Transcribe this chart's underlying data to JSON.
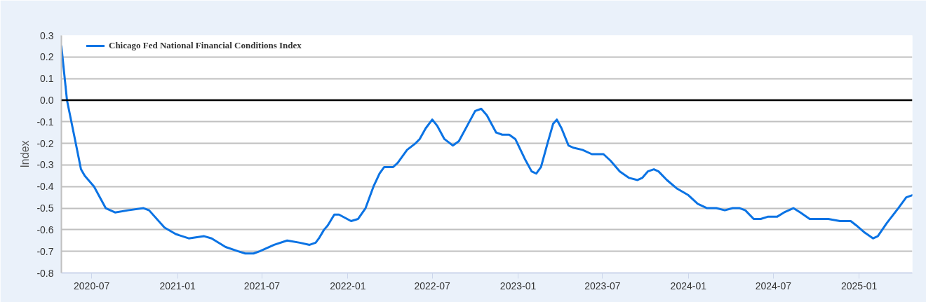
{
  "chart_data": {
    "type": "line",
    "ylabel": "Index",
    "x": [
      "2020-04-27",
      "2020-05-09",
      "2020-05-26",
      "2020-06-08",
      "2020-06-16",
      "2020-07-06",
      "2020-07-31",
      "2020-08-20",
      "2020-09-17",
      "2020-10-20",
      "2020-11-01",
      "2020-12-04",
      "2020-12-28",
      "2021-01-25",
      "2021-02-27",
      "2021-03-15",
      "2021-04-14",
      "2021-05-11",
      "2021-05-26",
      "2021-06-13",
      "2021-06-26",
      "2021-07-27",
      "2021-08-24",
      "2021-09-20",
      "2021-10-11",
      "2021-10-24",
      "2021-10-31",
      "2021-11-11",
      "2021-11-19",
      "2021-12-03",
      "2021-12-13",
      "2022-01-08",
      "2022-01-23",
      "2022-02-08",
      "2022-02-25",
      "2022-03-10",
      "2022-03-20",
      "2022-04-08",
      "2022-04-18",
      "2022-05-08",
      "2022-05-26",
      "2022-06-04",
      "2022-06-17",
      "2022-07-01",
      "2022-07-12",
      "2022-07-27",
      "2022-08-14",
      "2022-08-27",
      "2022-09-16",
      "2022-10-01",
      "2022-10-14",
      "2022-10-26",
      "2022-11-15",
      "2022-11-28",
      "2022-12-13",
      "2022-12-26",
      "2023-01-15",
      "2023-01-30",
      "2023-02-09",
      "2023-02-19",
      "2023-03-05",
      "2023-03-17",
      "2023-03-25",
      "2023-04-04",
      "2023-04-19",
      "2023-04-29",
      "2023-05-19",
      "2023-06-08",
      "2023-07-03",
      "2023-07-18",
      "2023-08-07",
      "2023-08-27",
      "2023-09-14",
      "2023-09-24",
      "2023-10-06",
      "2023-10-19",
      "2023-10-29",
      "2023-11-16",
      "2023-12-08",
      "2024-01-01",
      "2024-01-21",
      "2024-02-10",
      "2024-03-01",
      "2024-03-19",
      "2024-04-05",
      "2024-04-20",
      "2024-05-02",
      "2024-05-20",
      "2024-06-04",
      "2024-06-19",
      "2024-07-09",
      "2024-07-24",
      "2024-08-13",
      "2024-08-28",
      "2024-09-17",
      "2024-10-02",
      "2024-10-27",
      "2024-11-21",
      "2024-12-14",
      "2024-12-26",
      "2025-01-11",
      "2025-01-31",
      "2025-02-10",
      "2025-03-01",
      "2025-03-26",
      "2025-04-12",
      "2025-04-25"
    ],
    "series": [
      {
        "name": "Chicago Fed National Financial Conditions Index",
        "color": "#0b73e4",
        "values": [
          0.25,
          0.0,
          -0.18,
          -0.32,
          -0.35,
          -0.4,
          -0.5,
          -0.52,
          -0.51,
          -0.5,
          -0.51,
          -0.59,
          -0.62,
          -0.64,
          -0.63,
          -0.64,
          -0.68,
          -0.7,
          -0.71,
          -0.71,
          -0.7,
          -0.67,
          -0.65,
          -0.66,
          -0.67,
          -0.66,
          -0.64,
          -0.6,
          -0.58,
          -0.53,
          -0.53,
          -0.56,
          -0.55,
          -0.5,
          -0.4,
          -0.34,
          -0.31,
          -0.31,
          -0.29,
          -0.23,
          -0.2,
          -0.18,
          -0.13,
          -0.09,
          -0.12,
          -0.18,
          -0.21,
          -0.19,
          -0.11,
          -0.05,
          -0.04,
          -0.07,
          -0.15,
          -0.16,
          -0.16,
          -0.18,
          -0.27,
          -0.33,
          -0.34,
          -0.31,
          -0.2,
          -0.11,
          -0.09,
          -0.13,
          -0.21,
          -0.22,
          -0.23,
          -0.25,
          -0.25,
          -0.28,
          -0.33,
          -0.36,
          -0.37,
          -0.36,
          -0.33,
          -0.32,
          -0.33,
          -0.37,
          -0.41,
          -0.44,
          -0.48,
          -0.5,
          -0.5,
          -0.51,
          -0.5,
          -0.5,
          -0.51,
          -0.55,
          -0.55,
          -0.54,
          -0.54,
          -0.52,
          -0.5,
          -0.52,
          -0.55,
          -0.55,
          -0.55,
          -0.56,
          -0.56,
          -0.58,
          -0.61,
          -0.64,
          -0.63,
          -0.57,
          -0.5,
          -0.45,
          -0.44
        ]
      }
    ],
    "xlim": [
      "2020-04-27",
      "2025-04-25"
    ],
    "ylim": [
      -0.8,
      0.3
    ],
    "xticks": [
      "2020-07",
      "2021-01",
      "2021-07",
      "2022-01",
      "2022-07",
      "2023-01",
      "2023-07",
      "2024-01",
      "2024-07",
      "2025-01"
    ],
    "yticks": [
      0.3,
      0.2,
      0.1,
      {
        "value": 0,
        "label": "0.0"
      },
      -0.1,
      -0.2,
      -0.3,
      -0.4,
      -0.5,
      -0.6,
      -0.7,
      -0.8
    ],
    "grid": "y",
    "legend": "top left",
    "ref_lines": [
      {
        "axis": "y",
        "value": 0,
        "color": "#000000"
      }
    ]
  }
}
